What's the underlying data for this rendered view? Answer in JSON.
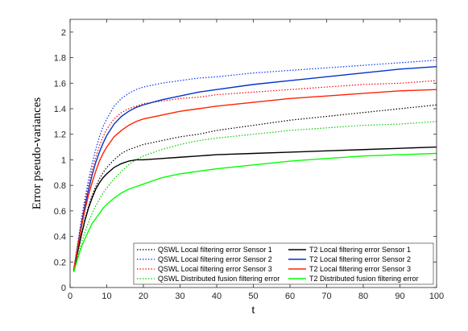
{
  "chart_data": {
    "type": "line",
    "xlabel": "t",
    "ylabel": "Error pseudo-variances",
    "xlim": [
      0,
      100
    ],
    "ylim": [
      0,
      2.1
    ],
    "xticks": [
      0,
      10,
      20,
      30,
      40,
      50,
      60,
      70,
      80,
      90,
      100
    ],
    "yticks": [
      0,
      0.2,
      0.4,
      0.6,
      0.8,
      1,
      1.2,
      1.4,
      1.6,
      1.8,
      2
    ],
    "ytick_labels": [
      "0",
      "0.2",
      "0.4",
      "0.6",
      "0.8",
      "1",
      "1.2",
      "1.4",
      "1.6",
      "1.8",
      "2"
    ],
    "grid": false,
    "legend_position": "bottom-right",
    "x": [
      1,
      2,
      3,
      4,
      5,
      6,
      7,
      8,
      9,
      10,
      12,
      14,
      16,
      18,
      20,
      25,
      30,
      35,
      40,
      50,
      60,
      70,
      80,
      90,
      100
    ],
    "series": [
      {
        "name": "QSWL Local filtering error Sensor 1",
        "color": "#000000",
        "dash": "dotted",
        "values": [
          0.13,
          0.28,
          0.41,
          0.53,
          0.63,
          0.72,
          0.79,
          0.85,
          0.9,
          0.94,
          1.0,
          1.05,
          1.08,
          1.1,
          1.12,
          1.15,
          1.18,
          1.2,
          1.23,
          1.27,
          1.31,
          1.34,
          1.37,
          1.4,
          1.43
        ]
      },
      {
        "name": "QSWL Local filtering error Sensor 2",
        "color": "#0033ff",
        "dash": "dotted",
        "values": [
          0.14,
          0.33,
          0.52,
          0.69,
          0.84,
          0.97,
          1.08,
          1.18,
          1.26,
          1.32,
          1.42,
          1.48,
          1.52,
          1.55,
          1.57,
          1.6,
          1.62,
          1.64,
          1.65,
          1.68,
          1.7,
          1.72,
          1.74,
          1.76,
          1.78
        ]
      },
      {
        "name": "QSWL Local filtering error Sensor 3",
        "color": "#ff0000",
        "dash": "dotted",
        "values": [
          0.14,
          0.32,
          0.5,
          0.66,
          0.8,
          0.92,
          1.02,
          1.11,
          1.18,
          1.24,
          1.32,
          1.37,
          1.4,
          1.42,
          1.44,
          1.46,
          1.48,
          1.49,
          1.51,
          1.53,
          1.55,
          1.57,
          1.59,
          1.6,
          1.62
        ]
      },
      {
        "name": "QSWL Distributed fusion filtering error",
        "color": "#00cc00",
        "dash": "dotted",
        "values": [
          0.13,
          0.24,
          0.34,
          0.43,
          0.51,
          0.58,
          0.64,
          0.69,
          0.74,
          0.78,
          0.85,
          0.91,
          0.96,
          1.0,
          1.03,
          1.08,
          1.12,
          1.15,
          1.17,
          1.2,
          1.23,
          1.25,
          1.27,
          1.28,
          1.3
        ]
      },
      {
        "name": "T2 Local filtering error Sensor 1",
        "color": "#000000",
        "dash": "solid",
        "values": [
          0.13,
          0.27,
          0.4,
          0.52,
          0.62,
          0.7,
          0.77,
          0.82,
          0.86,
          0.89,
          0.94,
          0.97,
          0.99,
          1.0,
          1.0,
          1.01,
          1.02,
          1.03,
          1.04,
          1.05,
          1.06,
          1.07,
          1.08,
          1.09,
          1.1
        ]
      },
      {
        "name": "T2 Local filtering error Sensor 2",
        "color": "#0033cc",
        "dash": "solid",
        "values": [
          0.14,
          0.31,
          0.48,
          0.63,
          0.76,
          0.88,
          0.98,
          1.06,
          1.13,
          1.19,
          1.28,
          1.34,
          1.38,
          1.41,
          1.43,
          1.47,
          1.5,
          1.53,
          1.55,
          1.59,
          1.62,
          1.65,
          1.68,
          1.71,
          1.73
        ]
      },
      {
        "name": "T2 Local filtering error Sensor 3",
        "color": "#ff2200",
        "dash": "solid",
        "values": [
          0.14,
          0.3,
          0.46,
          0.6,
          0.72,
          0.82,
          0.91,
          0.99,
          1.05,
          1.1,
          1.18,
          1.23,
          1.27,
          1.3,
          1.32,
          1.35,
          1.38,
          1.4,
          1.42,
          1.45,
          1.48,
          1.5,
          1.52,
          1.54,
          1.55
        ]
      },
      {
        "name": "T2 Distributed fusion filtering error",
        "color": "#00ff00",
        "dash": "solid",
        "values": [
          0.12,
          0.22,
          0.31,
          0.38,
          0.44,
          0.5,
          0.54,
          0.58,
          0.62,
          0.65,
          0.7,
          0.74,
          0.77,
          0.79,
          0.81,
          0.86,
          0.89,
          0.91,
          0.93,
          0.96,
          0.99,
          1.01,
          1.03,
          1.04,
          1.05
        ]
      }
    ]
  }
}
